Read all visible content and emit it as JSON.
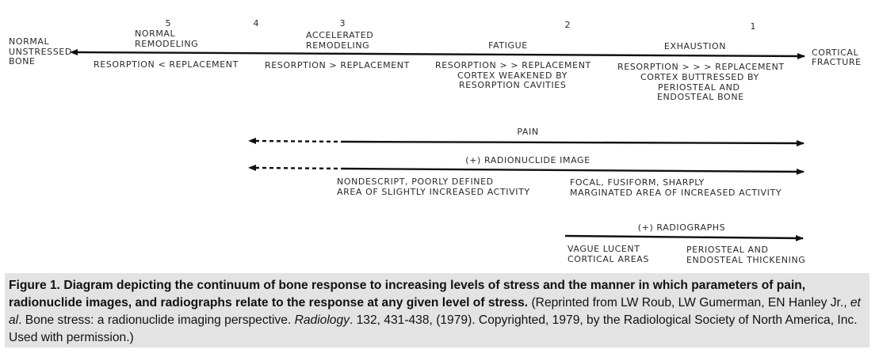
{
  "diagram": {
    "stages": [
      {
        "num": "5",
        "label": [
          "NORMAL",
          "REMODELING"
        ]
      },
      {
        "num": "4",
        "label": []
      },
      {
        "num": "3",
        "label": [
          "ACCELERATED",
          "REMODELING"
        ]
      },
      {
        "num": "2",
        "label": [
          "FATIGUE"
        ]
      },
      {
        "num": "1",
        "label": [
          "EXHAUSTION"
        ]
      }
    ],
    "left_end": [
      "NORMAL",
      "UNSTRESSED",
      "BONE"
    ],
    "right_end": [
      "CORTICAL",
      "FRACTURE"
    ],
    "balances": [
      [
        "RESORPTION < REPLACEMENT"
      ],
      [
        "RESORPTION > REPLACEMENT"
      ],
      [
        "RESORPTION > > REPLACEMENT",
        "CORTEX WEAKENED BY",
        "RESORPTION CAVITIES"
      ],
      [
        "RESORPTION > > > REPLACEMENT",
        "CORTEX BUTTRESSED BY",
        "PERIOSTEAL AND",
        "ENDOSTEAL BONE"
      ]
    ],
    "pain_label": "PAIN",
    "radionuclide_label": "(+) RADIONUCLIDE IMAGE",
    "radionuclide_left": [
      "NONDESCRIPT, POORLY DEFINED",
      "AREA OF SLIGHTLY INCREASED ACTIVITY"
    ],
    "radionuclide_right": [
      "FOCAL, FUSIFORM, SHARPLY",
      "MARGINATED AREA OF INCREASED ACTIVITY"
    ],
    "radiograph_label": "(+) RADIOGRAPHS",
    "radiograph_left": [
      "VAGUE LUCENT",
      "CORTICAL AREAS"
    ],
    "radiograph_right": [
      "PERIOSTEAL AND",
      "ENDOSTEAL THICKENING"
    ]
  },
  "caption": {
    "bold": "Figure 1. Diagram depicting the continuum of bone response to increasing levels of stress and the manner in which parameters of pain, radionuclide images, and radiographs relate to the response at any given level of stress.",
    "text1": " (Reprinted from LW Roub, LW Gumerman, EN Hanley Jr., ",
    "italic1": "et al",
    "text2": ". Bone stress: a radionuclide imaging perspective. ",
    "italic2": "Radiology",
    "text3": ". 132, 431-438, (1979). Copyrighted, 1979, by the Radiological Society of North America, Inc. Used with permission.)"
  }
}
